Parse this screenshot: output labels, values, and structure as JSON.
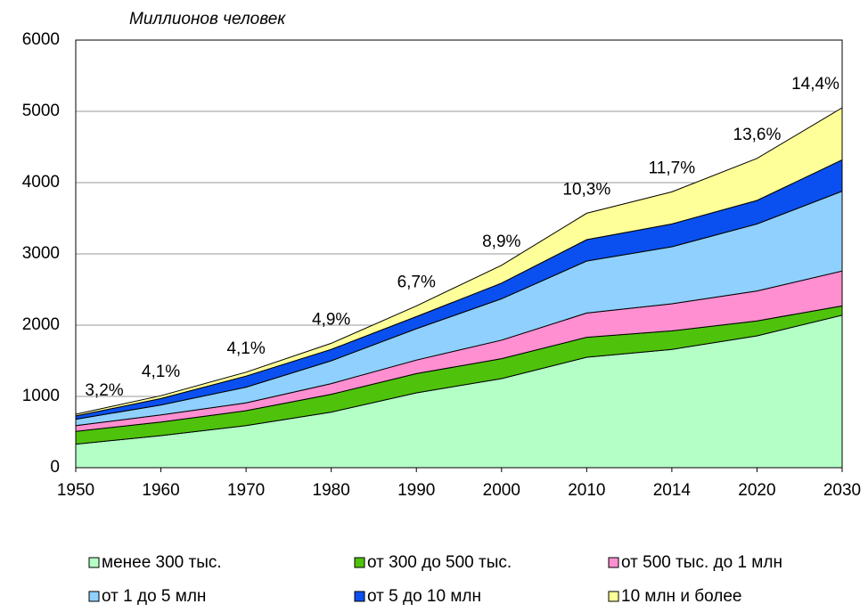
{
  "chart_data": {
    "type": "stacked-area",
    "subtitle": "Миллионов человек",
    "categories": [
      "1950",
      "1960",
      "1970",
      "1980",
      "1990",
      "2000",
      "2010",
      "2014",
      "2020",
      "2030"
    ],
    "ylim": [
      0,
      6000
    ],
    "yticks": [
      0,
      1000,
      2000,
      3000,
      4000,
      5000,
      6000
    ],
    "grid": true,
    "share_labels": [
      "3,2%",
      "4,1%",
      "4,1%",
      "4,9%",
      "6,7%",
      "8,9%",
      "10,3%",
      "11,7%",
      "13,6%",
      "14,4%"
    ],
    "series": [
      {
        "name": "менее 300 тыс.",
        "color": "#b3ffc6",
        "values": [
          330,
          450,
          590,
          780,
          1050,
          1250,
          1550,
          1660,
          1850,
          2140
        ]
      },
      {
        "name": "от 300 до 500 тыс.",
        "color": "#4fc30c",
        "values": [
          180,
          190,
          210,
          250,
          270,
          280,
          280,
          260,
          210,
          130
        ]
      },
      {
        "name": "от 500 тыс. до 1 млн",
        "color": "#ff8fd0",
        "values": [
          80,
          100,
          110,
          150,
          190,
          260,
          340,
          380,
          420,
          490
        ]
      },
      {
        "name": "от 1 до 5 млн",
        "color": "#8fd0ff",
        "values": [
          90,
          140,
          220,
          320,
          440,
          580,
          730,
          800,
          940,
          1120
        ]
      },
      {
        "name": "от 5 до 10 млн",
        "color": "#0a50f0",
        "values": [
          46,
          90,
          155,
          160,
          170,
          220,
          300,
          320,
          330,
          440
        ]
      },
      {
        "name": "10 млн и более",
        "color": "#ffff99",
        "values": [
          24,
          40,
          55,
          85,
          150,
          250,
          370,
          450,
          590,
          730
        ]
      }
    ]
  }
}
